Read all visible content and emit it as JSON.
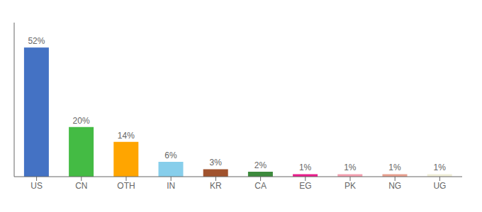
{
  "chart_data": {
    "type": "bar",
    "categories": [
      "US",
      "CN",
      "OTH",
      "IN",
      "KR",
      "CA",
      "EG",
      "PK",
      "NG",
      "UG"
    ],
    "values": [
      52,
      20,
      14,
      6,
      3,
      2,
      1,
      1,
      1,
      1
    ],
    "value_labels": [
      "52%",
      "20%",
      "14%",
      "6%",
      "3%",
      "2%",
      "1%",
      "1%",
      "1%",
      "1%"
    ],
    "data_labels": true,
    "colors": [
      "#4472c4",
      "#44bb44",
      "#ffa500",
      "#87ceeb",
      "#a0522d",
      "#3d8b3d",
      "#e91e8c",
      "#f4a0b0",
      "#e8a090",
      "#f0eed8"
    ],
    "ylim": [
      0,
      62
    ],
    "yticks": [],
    "grid": false,
    "tick_labels": "x"
  }
}
